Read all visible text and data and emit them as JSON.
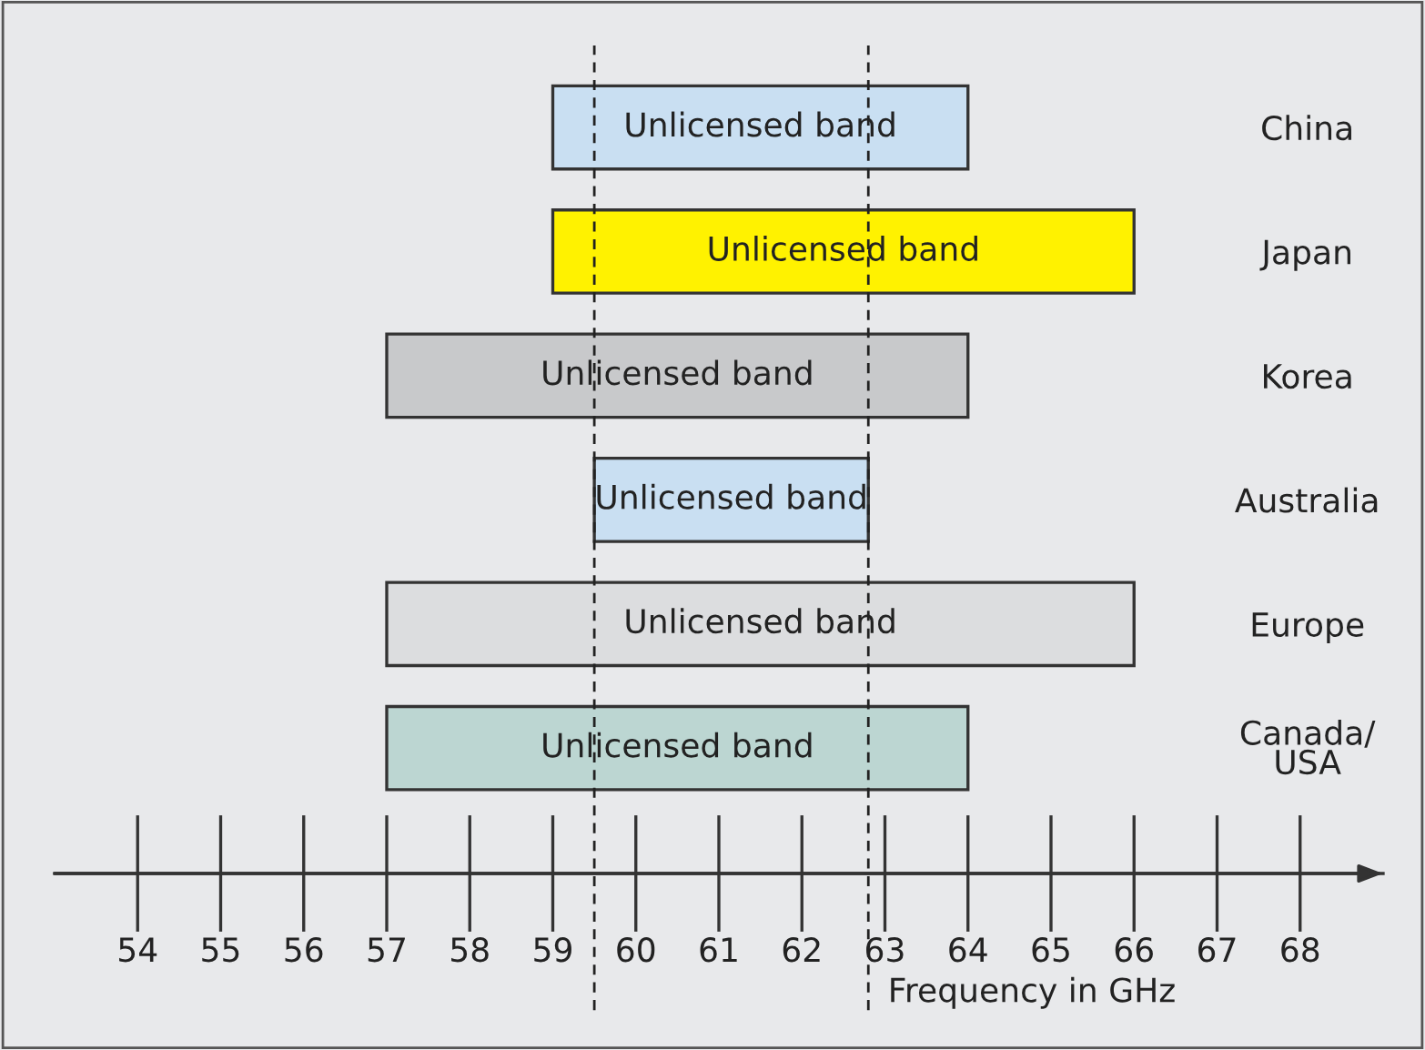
{
  "chart_data": {
    "type": "bar",
    "orientation": "horizontal",
    "xlabel": "Frequency in GHz",
    "categories": [
      "China",
      "Japan",
      "Korea",
      "Australia",
      "Europe",
      "Canada/\nUSA"
    ],
    "base": [
      59,
      59,
      57,
      59.5,
      57,
      57
    ],
    "values": [
      5,
      7,
      7,
      3.3,
      9,
      7
    ],
    "colors": [
      "#c9dff2",
      "#fff200",
      "#c8c9cb",
      "#c9dff2",
      "#dcdddf",
      "#bcd6d2"
    ],
    "value_labels": [
      "Unlicensed band",
      "Unlicensed band",
      "Unlicensed band",
      "Unlicensed band",
      "Unlicensed band",
      "Unlicensed band"
    ],
    "xlim": [
      53,
      69
    ],
    "xticks": [
      54,
      55,
      56,
      57,
      58,
      59,
      60,
      61,
      62,
      63,
      64,
      65,
      66,
      67,
      68
    ],
    "ref_lines": [
      {
        "axis": "x",
        "value": 59.5,
        "line_style": "dashed",
        "color": "#222222"
      },
      {
        "axis": "x",
        "value": 62.8,
        "line_style": "dashed",
        "color": "#222222"
      }
    ],
    "grid": false,
    "legend": false
  }
}
